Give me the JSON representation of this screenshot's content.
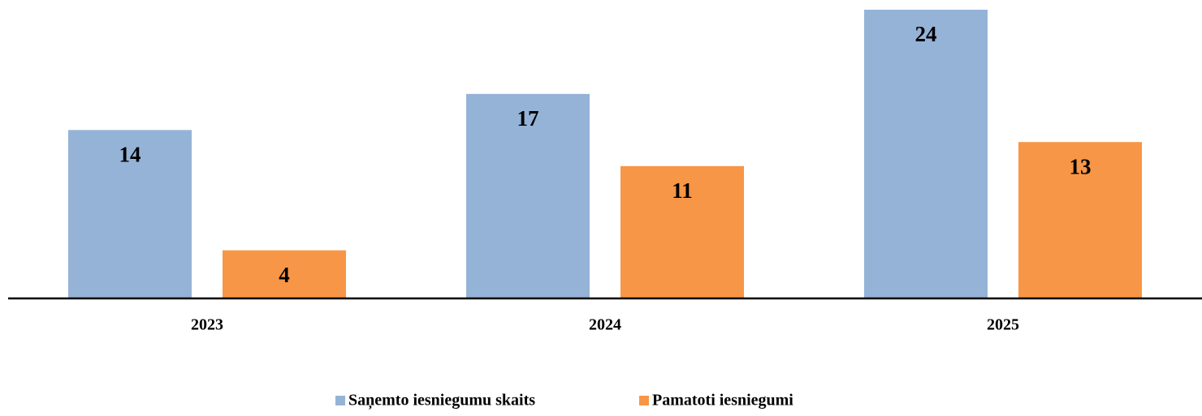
{
  "chart_data": {
    "type": "bar",
    "categories": [
      "2023",
      "2024",
      "2025"
    ],
    "series": [
      {
        "name": "Saņemto iesniegumu skaits",
        "color": "#95b3d7",
        "values": [
          14,
          17,
          24
        ]
      },
      {
        "name": "Pamatoti iesniegumi",
        "color": "#f79646",
        "values": [
          4,
          11,
          13
        ]
      }
    ],
    "legend": "bottom"
  }
}
